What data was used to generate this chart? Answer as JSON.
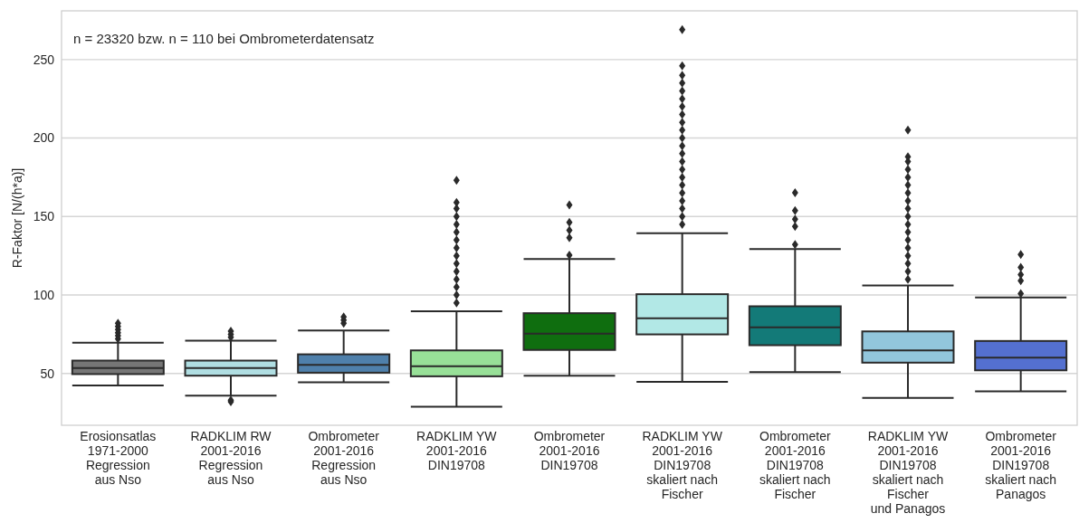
{
  "chart_data": {
    "type": "box",
    "ylabel": "R-Faktor [N/(h*a)]",
    "annotations": [
      "n = 23320 bzw. n = 110 bei Ombrometerdatensatz"
    ],
    "categories": [
      "Erosionsatlas\n1971-2000\nRegression\naus Nso",
      "RADKLIM RW\n2001-2016\nRegression\naus Nso",
      "Ombrometer\n2001-2016\nRegression\naus Nso",
      "RADKLIM YW\n2001-2016\nDIN19708",
      "Ombrometer\n2001-2016\nDIN19708",
      "RADKLIM YW\n2001-2016\nDIN19708\nskaliert nach\nFischer",
      "Ombrometer\n2001-2016\nDIN19708\nskaliert nach\nFischer",
      "RADKLIM YW\n2001-2016\nDIN19708\nskaliert nach\nFischer\nund Panagos",
      "Ombrometer\n2001-2016\nDIN19708\nskaliert nach\nPanagos"
    ],
    "colors": [
      "#767676",
      "#b0dee2",
      "#4f80ab",
      "#98e098",
      "#0f6e0f",
      "#b2e8e6",
      "#137a78",
      "#92c6dc",
      "#5470d0"
    ],
    "boxes": [
      {
        "low": 42.3,
        "q1": 49.6,
        "median": 53.4,
        "q3": 58.2,
        "high": 69.6,
        "outliers": [
          72,
          74,
          76,
          78,
          80,
          82
        ]
      },
      {
        "low": 35.9,
        "q1": 48.6,
        "median": 53.4,
        "q3": 58.2,
        "high": 70.9,
        "outliers": [
          32,
          33,
          73,
          75,
          77
        ]
      },
      {
        "low": 44.4,
        "q1": 50.5,
        "median": 55.5,
        "q3": 62.2,
        "high": 77.4,
        "outliers": [
          82,
          84,
          86
        ]
      },
      {
        "low": 28.8,
        "q1": 48.2,
        "median": 54.6,
        "q3": 64.7,
        "high": 89.7,
        "outliers": [
          95,
          100,
          105,
          110,
          115,
          120,
          125,
          130,
          135,
          140,
          145,
          150,
          155,
          159,
          173
        ]
      },
      {
        "low": 48.6,
        "q1": 65,
        "median": 75.3,
        "q3": 88.4,
        "high": 122.9,
        "outliers": [
          125.4,
          136.4,
          141.2,
          146.2,
          157.3
        ]
      },
      {
        "low": 44.6,
        "q1": 74.9,
        "median": 85.1,
        "q3": 100.5,
        "high": 139.3,
        "outliers": [
          145,
          150,
          155,
          160,
          165,
          170,
          175,
          180,
          185,
          190,
          195,
          200,
          205,
          210,
          215,
          220,
          225,
          230,
          235,
          240,
          246,
          269
        ]
      },
      {
        "low": 50.9,
        "q1": 68,
        "median": 79.4,
        "q3": 92.8,
        "high": 129.3,
        "outliers": [
          132.2,
          143.7,
          148.3,
          153.7,
          165.2
        ]
      },
      {
        "low": 34.4,
        "q1": 56.9,
        "median": 64.7,
        "q3": 76.8,
        "high": 106,
        "outliers": [
          110,
          115,
          120,
          125,
          130,
          135,
          140,
          145,
          150,
          155,
          160,
          165,
          170,
          175,
          180,
          185,
          188,
          205
        ]
      },
      {
        "low": 38.6,
        "q1": 52,
        "median": 60.1,
        "q3": 70.7,
        "high": 98.4,
        "outliers": [
          100.9,
          109.1,
          113,
          117.6,
          125.8
        ]
      }
    ],
    "ylim": [
      17,
      281
    ],
    "yticks": [
      50,
      100,
      150,
      200,
      250
    ],
    "grid": "y"
  }
}
